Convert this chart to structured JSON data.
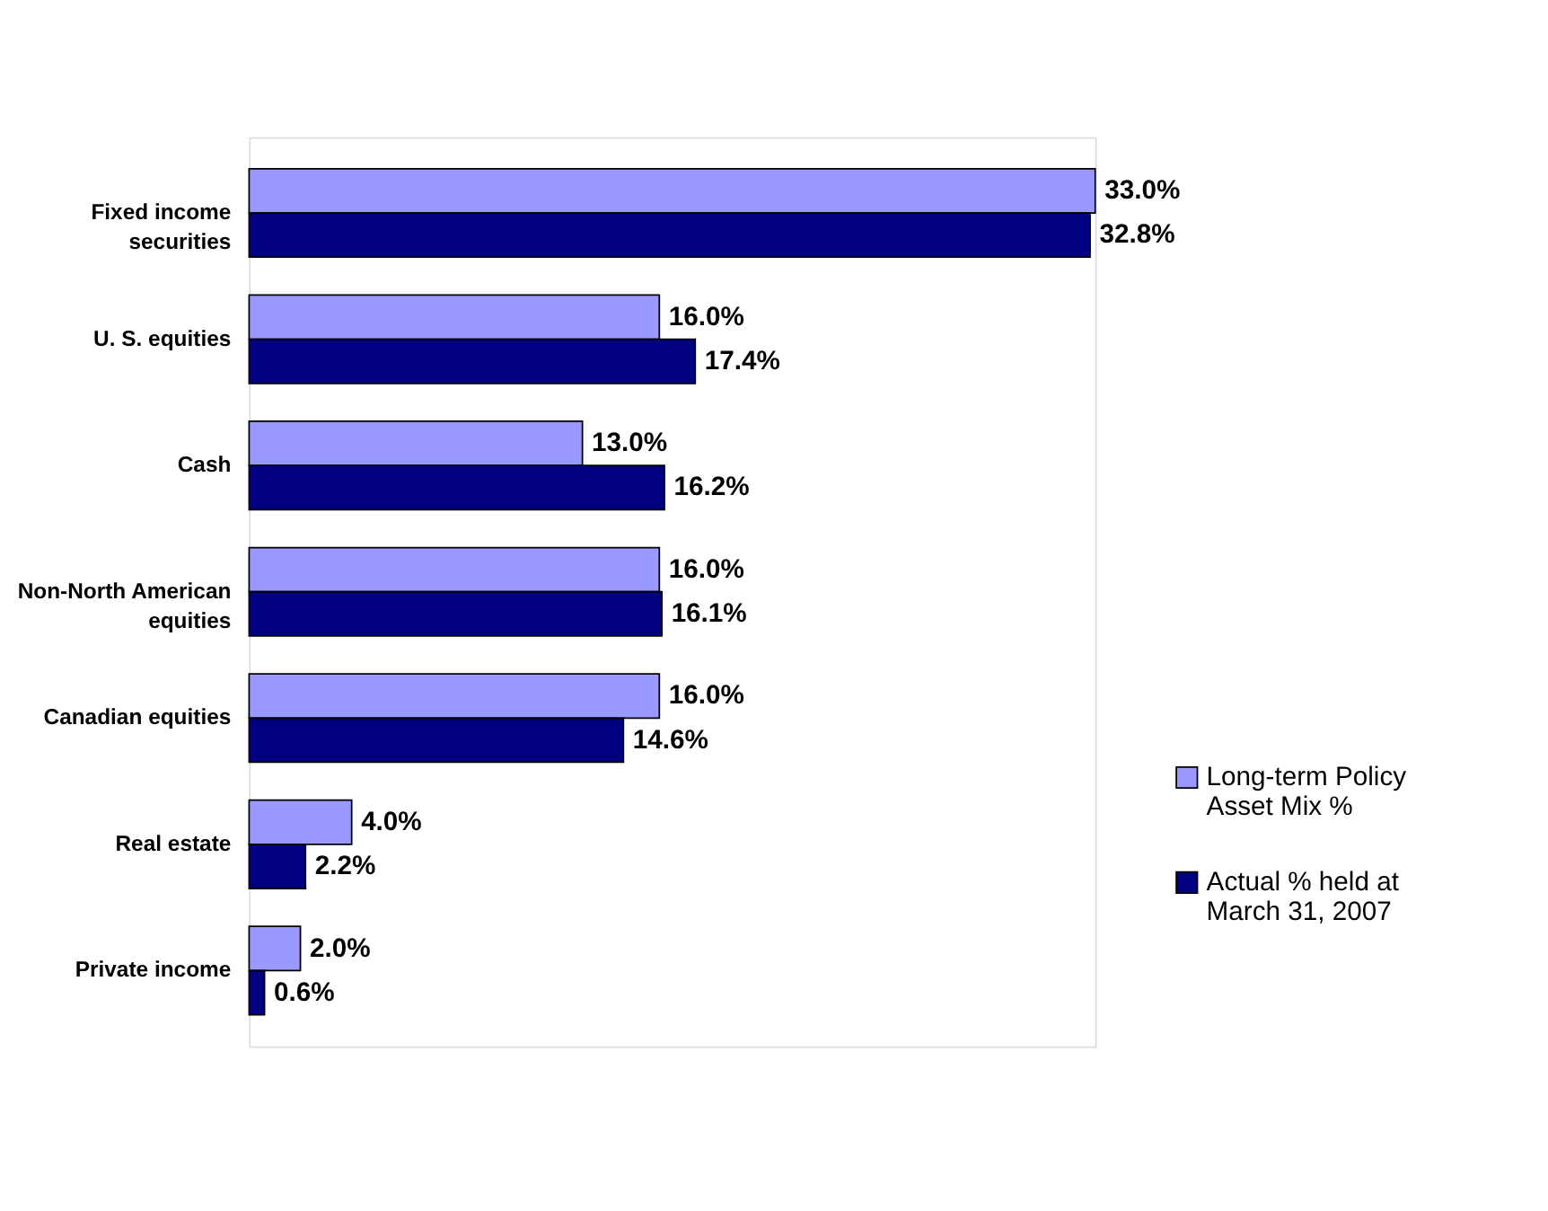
{
  "chart_data": {
    "type": "bar",
    "orientation": "horizontal",
    "categories": [
      "Fixed income securities",
      "U. S. equities",
      "Cash",
      "Non-North American equities",
      "Canadian equities",
      "Real estate",
      "Private income"
    ],
    "series": [
      {
        "name": "Long-term Policy Asset Mix %",
        "color": "#9999ff",
        "values": [
          33.0,
          16.0,
          13.0,
          16.0,
          16.0,
          4.0,
          2.0
        ],
        "value_labels": [
          "33.0%",
          "16.0%",
          "13.0%",
          "16.0%",
          "16.0%",
          "4.0%",
          "2.0%"
        ]
      },
      {
        "name": "Actual % held at March 31, 2007",
        "color": "#000080",
        "values": [
          32.8,
          17.4,
          16.2,
          16.1,
          14.6,
          2.2,
          0.6
        ],
        "value_labels": [
          "32.8%",
          "17.4%",
          "16.2%",
          "16.1%",
          "14.6%",
          "2.2%",
          "0.6%"
        ]
      }
    ],
    "legend": "bottom right"
  }
}
